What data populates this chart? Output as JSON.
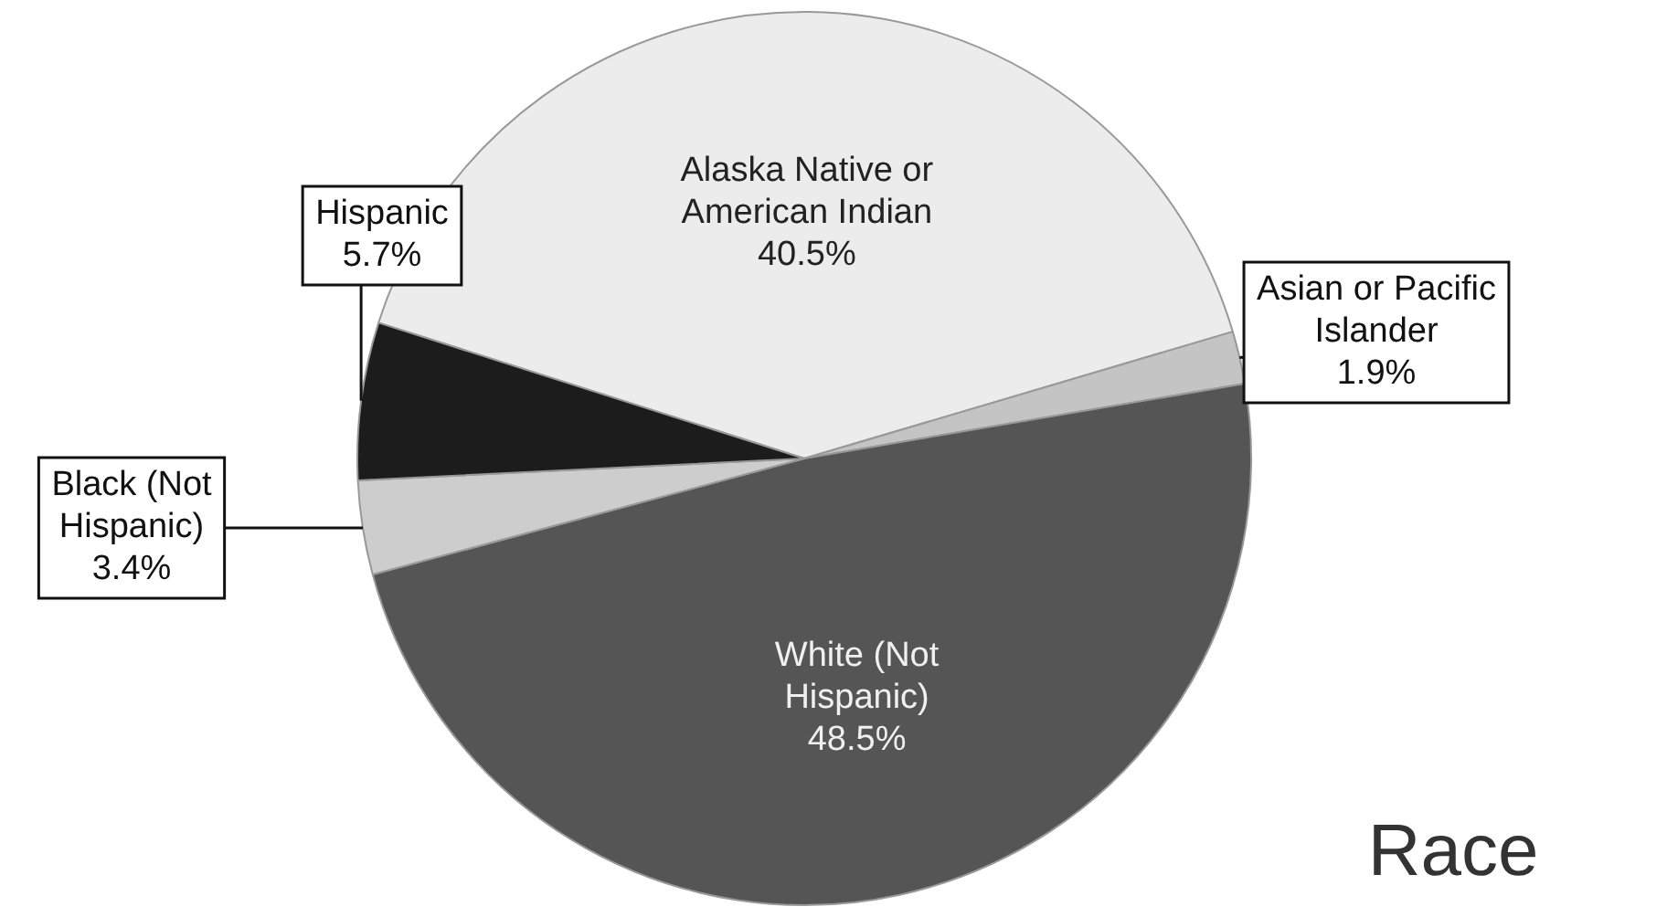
{
  "chart_data": {
    "type": "pie",
    "title": "Race",
    "categories": [
      "Alaska Native or American Indian",
      "Asian or Pacific Islander",
      "White (Not Hispanic)",
      "Black (Not Hispanic)",
      "Hispanic"
    ],
    "values": [
      40.5,
      1.9,
      48.5,
      3.4,
      5.7
    ],
    "colors": [
      "#ececec",
      "#c4c4c4",
      "#555555",
      "#cdcdcd",
      "#1c1c1c"
    ],
    "value_labels": [
      "40.5%",
      "1.9%",
      "48.5%",
      "3.4%",
      "5.7%"
    ],
    "legend": false
  }
}
